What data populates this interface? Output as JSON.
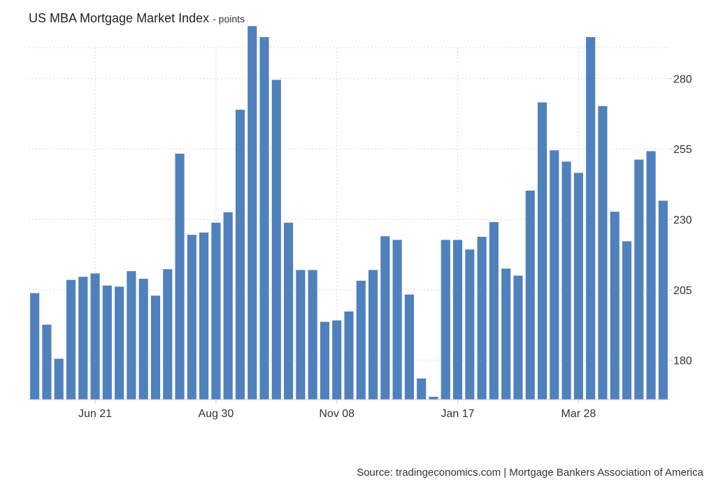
{
  "title": "US MBA Mortgage Market Index",
  "title_unit": "- points",
  "source": "Source: tradingeconomics.com | Mortgage Bankers Association of America",
  "colors": {
    "bar": "#4f81bd",
    "grid": "#d9d9d9",
    "axis": "#cccccc"
  },
  "chart_data": {
    "type": "bar",
    "title": "US MBA Mortgage Market Index",
    "ylabel": "points",
    "ylim": [
      166,
      291
    ],
    "yticks": [
      180,
      205,
      230,
      255,
      280
    ],
    "xticks": [
      {
        "label": "Jun 21",
        "index": 5
      },
      {
        "label": "Aug 30",
        "index": 15
      },
      {
        "label": "Nov 08",
        "index": 25
      },
      {
        "label": "Jan 17",
        "index": 35
      },
      {
        "label": "Mar 28",
        "index": 45
      }
    ],
    "grid": true,
    "values": [
      203.8,
      192.6,
      180.5,
      208.5,
      209.6,
      210.8,
      206.5,
      206.1,
      211.6,
      208.9,
      202.9,
      212.3,
      253.3,
      224.5,
      225.3,
      228.8,
      232.5,
      268.9,
      298.6,
      294.7,
      279.5,
      228.8,
      212.0,
      212.0,
      193.6,
      194.1,
      197.3,
      208.2,
      212.0,
      224.0,
      222.7,
      203.3,
      173.5,
      167.0,
      222.7,
      222.7,
      219.3,
      223.8,
      229.0,
      212.5,
      210.0,
      240.2,
      271.5,
      254.5,
      250.5,
      246.5,
      294.7,
      270.2,
      232.7,
      222.2,
      251.2,
      254.2,
      236.6
    ]
  }
}
